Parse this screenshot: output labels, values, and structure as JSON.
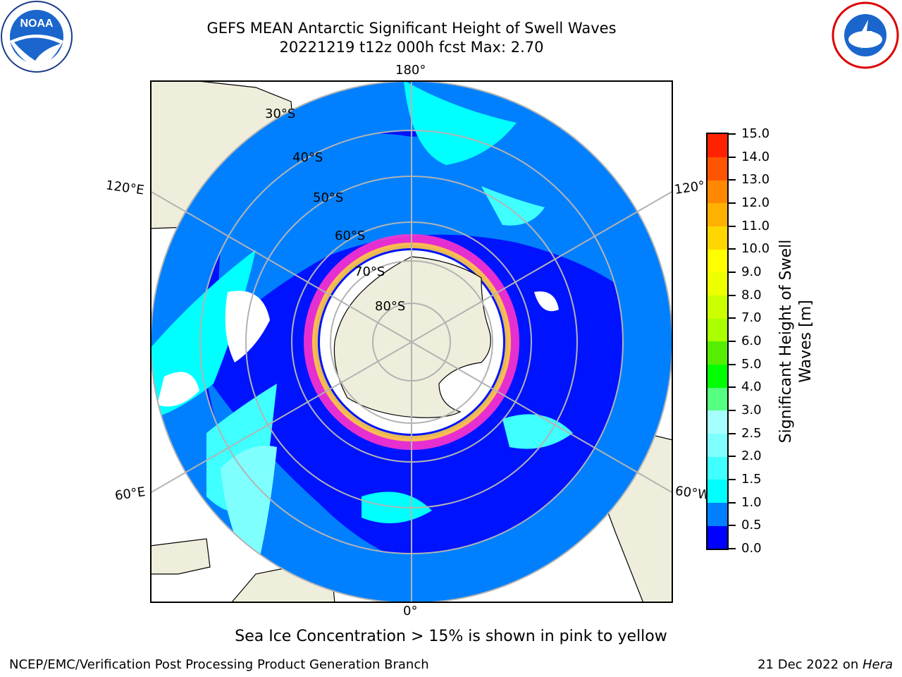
{
  "title_line1": "GEFS MEAN Antarctic Significant Height of Swell Waves",
  "title_line2": "20221219 t12z 000h fcst   Max: 2.70",
  "map": {
    "longitude_labels": {
      "top": "180°",
      "bottom": "0°",
      "left_upper": "120°E",
      "left_lower": "60°E",
      "right_upper": "120°",
      "right_lower": "60°W"
    },
    "latitude_labels": [
      "30°S",
      "40°S",
      "50°S",
      "60°S",
      "70°S",
      "80°S"
    ],
    "colors": {
      "land": "#efeedc",
      "ocean_base": "#0080ff",
      "deep_blue": "#0000ff",
      "ice_pink": "#ff33cc",
      "ice_yellow": "#ffcc44",
      "grid": "#b3b3b3"
    }
  },
  "colorbar": {
    "title_line1": "Significant Height of Swell",
    "title_line2": "Waves [m]",
    "ticks": [
      "0.0",
      "0.5",
      "1.0",
      "1.5",
      "2.0",
      "2.5",
      "3.0",
      "4.0",
      "5.0",
      "6.0",
      "7.0",
      "8.0",
      "9.0",
      "10.0",
      "11.0",
      "12.0",
      "13.0",
      "14.0",
      "15.0"
    ],
    "colors": [
      "#0000ff",
      "#0080ff",
      "#00ffff",
      "#40ffff",
      "#80ffff",
      "#a6ffff",
      "#55ff80",
      "#00ff00",
      "#55ee00",
      "#aaff00",
      "#ccff00",
      "#eeff00",
      "#ffff00",
      "#ffd700",
      "#ffb000",
      "#ff8800",
      "#ff5500",
      "#ff2200"
    ]
  },
  "sea_ice_note": "Sea Ice Concentration > 15% is shown in pink to yellow",
  "footer_left": "NCEP/EMC/Verification Post Processing Product Generation Branch",
  "footer_date": "21 Dec 2022 on ",
  "footer_machine": "Hera",
  "logos": {
    "left": "NOAA",
    "right": "NATIONAL WEATHER SERVICE"
  }
}
